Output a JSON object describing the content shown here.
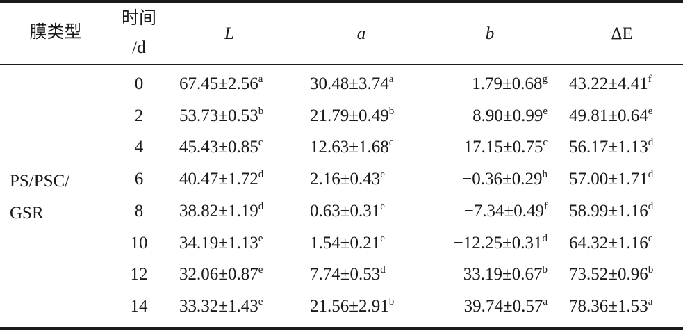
{
  "table": {
    "headers": {
      "membrane_type": "膜类型",
      "time_line1": "时间",
      "time_line2": "/d",
      "L": "L",
      "a": "a",
      "b": "b",
      "dE": "ΔE"
    },
    "membrane_label_line1": "PS/PSC/",
    "membrane_label_line2": "GSR",
    "rows": [
      {
        "day": "0",
        "L": "67.45±2.56",
        "L_sup": "a",
        "a": "30.48±3.74",
        "a_sup": "a",
        "b": "1.79±0.68",
        "b_sup": "g",
        "dE": "43.22±4.41",
        "dE_sup": "f"
      },
      {
        "day": "2",
        "L": "53.73±0.53",
        "L_sup": "b",
        "a": "21.79±0.49",
        "a_sup": "b",
        "b": "8.90±0.99",
        "b_sup": "e",
        "dE": "49.81±0.64",
        "dE_sup": "e"
      },
      {
        "day": "4",
        "L": "45.43±0.85",
        "L_sup": "c",
        "a": "12.63±1.68",
        "a_sup": "c",
        "b": "17.15±0.75",
        "b_sup": "c",
        "dE": "56.17±1.13",
        "dE_sup": "d"
      },
      {
        "day": "6",
        "L": "40.47±1.72",
        "L_sup": "d",
        "a": "2.16±0.43",
        "a_sup": "e",
        "b": "−0.36±0.29",
        "b_sup": "h",
        "dE": "57.00±1.71",
        "dE_sup": "d"
      },
      {
        "day": "8",
        "L": "38.82±1.19",
        "L_sup": "d",
        "a": "0.63±0.31",
        "a_sup": "e",
        "b": "−7.34±0.49",
        "b_sup": "f",
        "dE": "58.99±1.16",
        "dE_sup": "d"
      },
      {
        "day": "10",
        "L": "34.19±1.13",
        "L_sup": "e",
        "a": "1.54±0.21",
        "a_sup": "e",
        "b": "−12.25±0.31",
        "b_sup": "d",
        "dE": "64.32±1.16",
        "dE_sup": "c"
      },
      {
        "day": "12",
        "L": "32.06±0.87",
        "L_sup": "e",
        "a": "7.74±0.53",
        "a_sup": "d",
        "b": "33.19±0.67",
        "b_sup": "b",
        "dE": "73.52±0.96",
        "dE_sup": "b"
      },
      {
        "day": "14",
        "L": "33.32±1.43",
        "L_sup": "e",
        "a": "21.56±2.91",
        "a_sup": "b",
        "b": "39.74±0.57",
        "b_sup": "a",
        "dE": "78.36±1.53",
        "dE_sup": "a"
      }
    ]
  }
}
